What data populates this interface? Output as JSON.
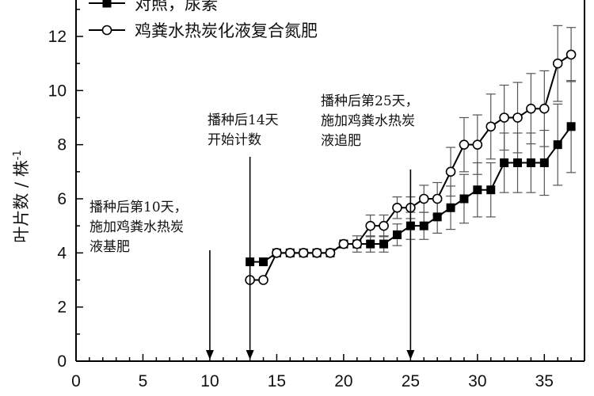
{
  "chart_data": {
    "type": "line",
    "title": "",
    "xlabel": "",
    "ylabel": "叶片数 / 株",
    "ylabel_sup": "-1",
    "xlim": [
      0,
      38
    ],
    "ylim": [
      0,
      13
    ],
    "xticks": [
      0,
      5,
      10,
      15,
      20,
      25,
      30,
      35
    ],
    "yticks": [
      0,
      2,
      4,
      6,
      8,
      10,
      12
    ],
    "legend_position": "top-left",
    "grid": false,
    "series": [
      {
        "name": "对照，尿素",
        "marker": "filled-square",
        "color": "#000000",
        "points": [
          {
            "x": 13,
            "y": 3.67
          },
          {
            "x": 14,
            "y": 3.67
          },
          {
            "x": 15,
            "y": 4.0
          },
          {
            "x": 16,
            "y": 4.0
          },
          {
            "x": 17,
            "y": 4.0
          },
          {
            "x": 18,
            "y": 4.0
          },
          {
            "x": 19,
            "y": 4.0
          },
          {
            "x": 20,
            "y": 4.33
          },
          {
            "x": 21,
            "y": 4.33
          },
          {
            "x": 22,
            "y": 4.33
          },
          {
            "x": 23,
            "y": 4.33
          },
          {
            "x": 24,
            "y": 4.67
          },
          {
            "x": 25,
            "y": 5.0
          },
          {
            "x": 26,
            "y": 5.0
          },
          {
            "x": 27,
            "y": 5.33
          },
          {
            "x": 28,
            "y": 5.67
          },
          {
            "x": 29,
            "y": 6.0
          },
          {
            "x": 30,
            "y": 6.33
          },
          {
            "x": 31,
            "y": 6.33
          },
          {
            "x": 32,
            "y": 7.33
          },
          {
            "x": 33,
            "y": 7.33
          },
          {
            "x": 34,
            "y": 7.33
          },
          {
            "x": 35,
            "y": 7.33
          },
          {
            "x": 36,
            "y": 8.0
          },
          {
            "x": 37,
            "y": 8.67
          }
        ],
        "error": [
          0,
          0,
          0,
          0,
          0,
          0,
          0,
          0,
          0,
          0.3,
          0.3,
          0.4,
          0.5,
          0.5,
          0.6,
          0.8,
          0.9,
          1.0,
          1.0,
          1.1,
          1.1,
          1.1,
          1.2,
          1.5,
          1.7
        ]
      },
      {
        "name": "鸡粪水热炭化液复合氮肥",
        "marker": "open-circle",
        "color": "#000000",
        "points": [
          {
            "x": 13,
            "y": 3.0
          },
          {
            "x": 14,
            "y": 3.0
          },
          {
            "x": 15,
            "y": 4.0
          },
          {
            "x": 16,
            "y": 4.0
          },
          {
            "x": 17,
            "y": 4.0
          },
          {
            "x": 18,
            "y": 4.0
          },
          {
            "x": 19,
            "y": 4.0
          },
          {
            "x": 20,
            "y": 4.33
          },
          {
            "x": 21,
            "y": 4.33
          },
          {
            "x": 22,
            "y": 5.0
          },
          {
            "x": 23,
            "y": 5.0
          },
          {
            "x": 24,
            "y": 5.67
          },
          {
            "x": 25,
            "y": 5.67
          },
          {
            "x": 26,
            "y": 6.0
          },
          {
            "x": 27,
            "y": 6.0
          },
          {
            "x": 28,
            "y": 7.0
          },
          {
            "x": 29,
            "y": 8.0
          },
          {
            "x": 30,
            "y": 8.0
          },
          {
            "x": 31,
            "y": 8.67
          },
          {
            "x": 32,
            "y": 9.0
          },
          {
            "x": 33,
            "y": 9.0
          },
          {
            "x": 34,
            "y": 9.33
          },
          {
            "x": 35,
            "y": 9.33
          },
          {
            "x": 36,
            "y": 11.0
          },
          {
            "x": 37,
            "y": 11.33
          }
        ],
        "error": [
          0,
          0,
          0,
          0,
          0,
          0,
          0,
          0,
          0.3,
          0.4,
          0.4,
          0.4,
          0.4,
          0.5,
          0.6,
          0.9,
          1.0,
          1.1,
          1.2,
          1.2,
          1.3,
          1.3,
          1.4,
          1.4,
          1.0
        ]
      }
    ],
    "annotations": [
      {
        "lines": [
          "播种后第10天，",
          "施加鸡粪水热炭",
          "液基肥"
        ],
        "arrow_x": 10
      },
      {
        "lines": [
          "播种后14天",
          "开始计数"
        ],
        "arrow_x": 13
      },
      {
        "lines": [
          "播种后第25天，",
          "施加鸡粪水热炭",
          "液追肥"
        ],
        "arrow_x": 25
      }
    ]
  }
}
